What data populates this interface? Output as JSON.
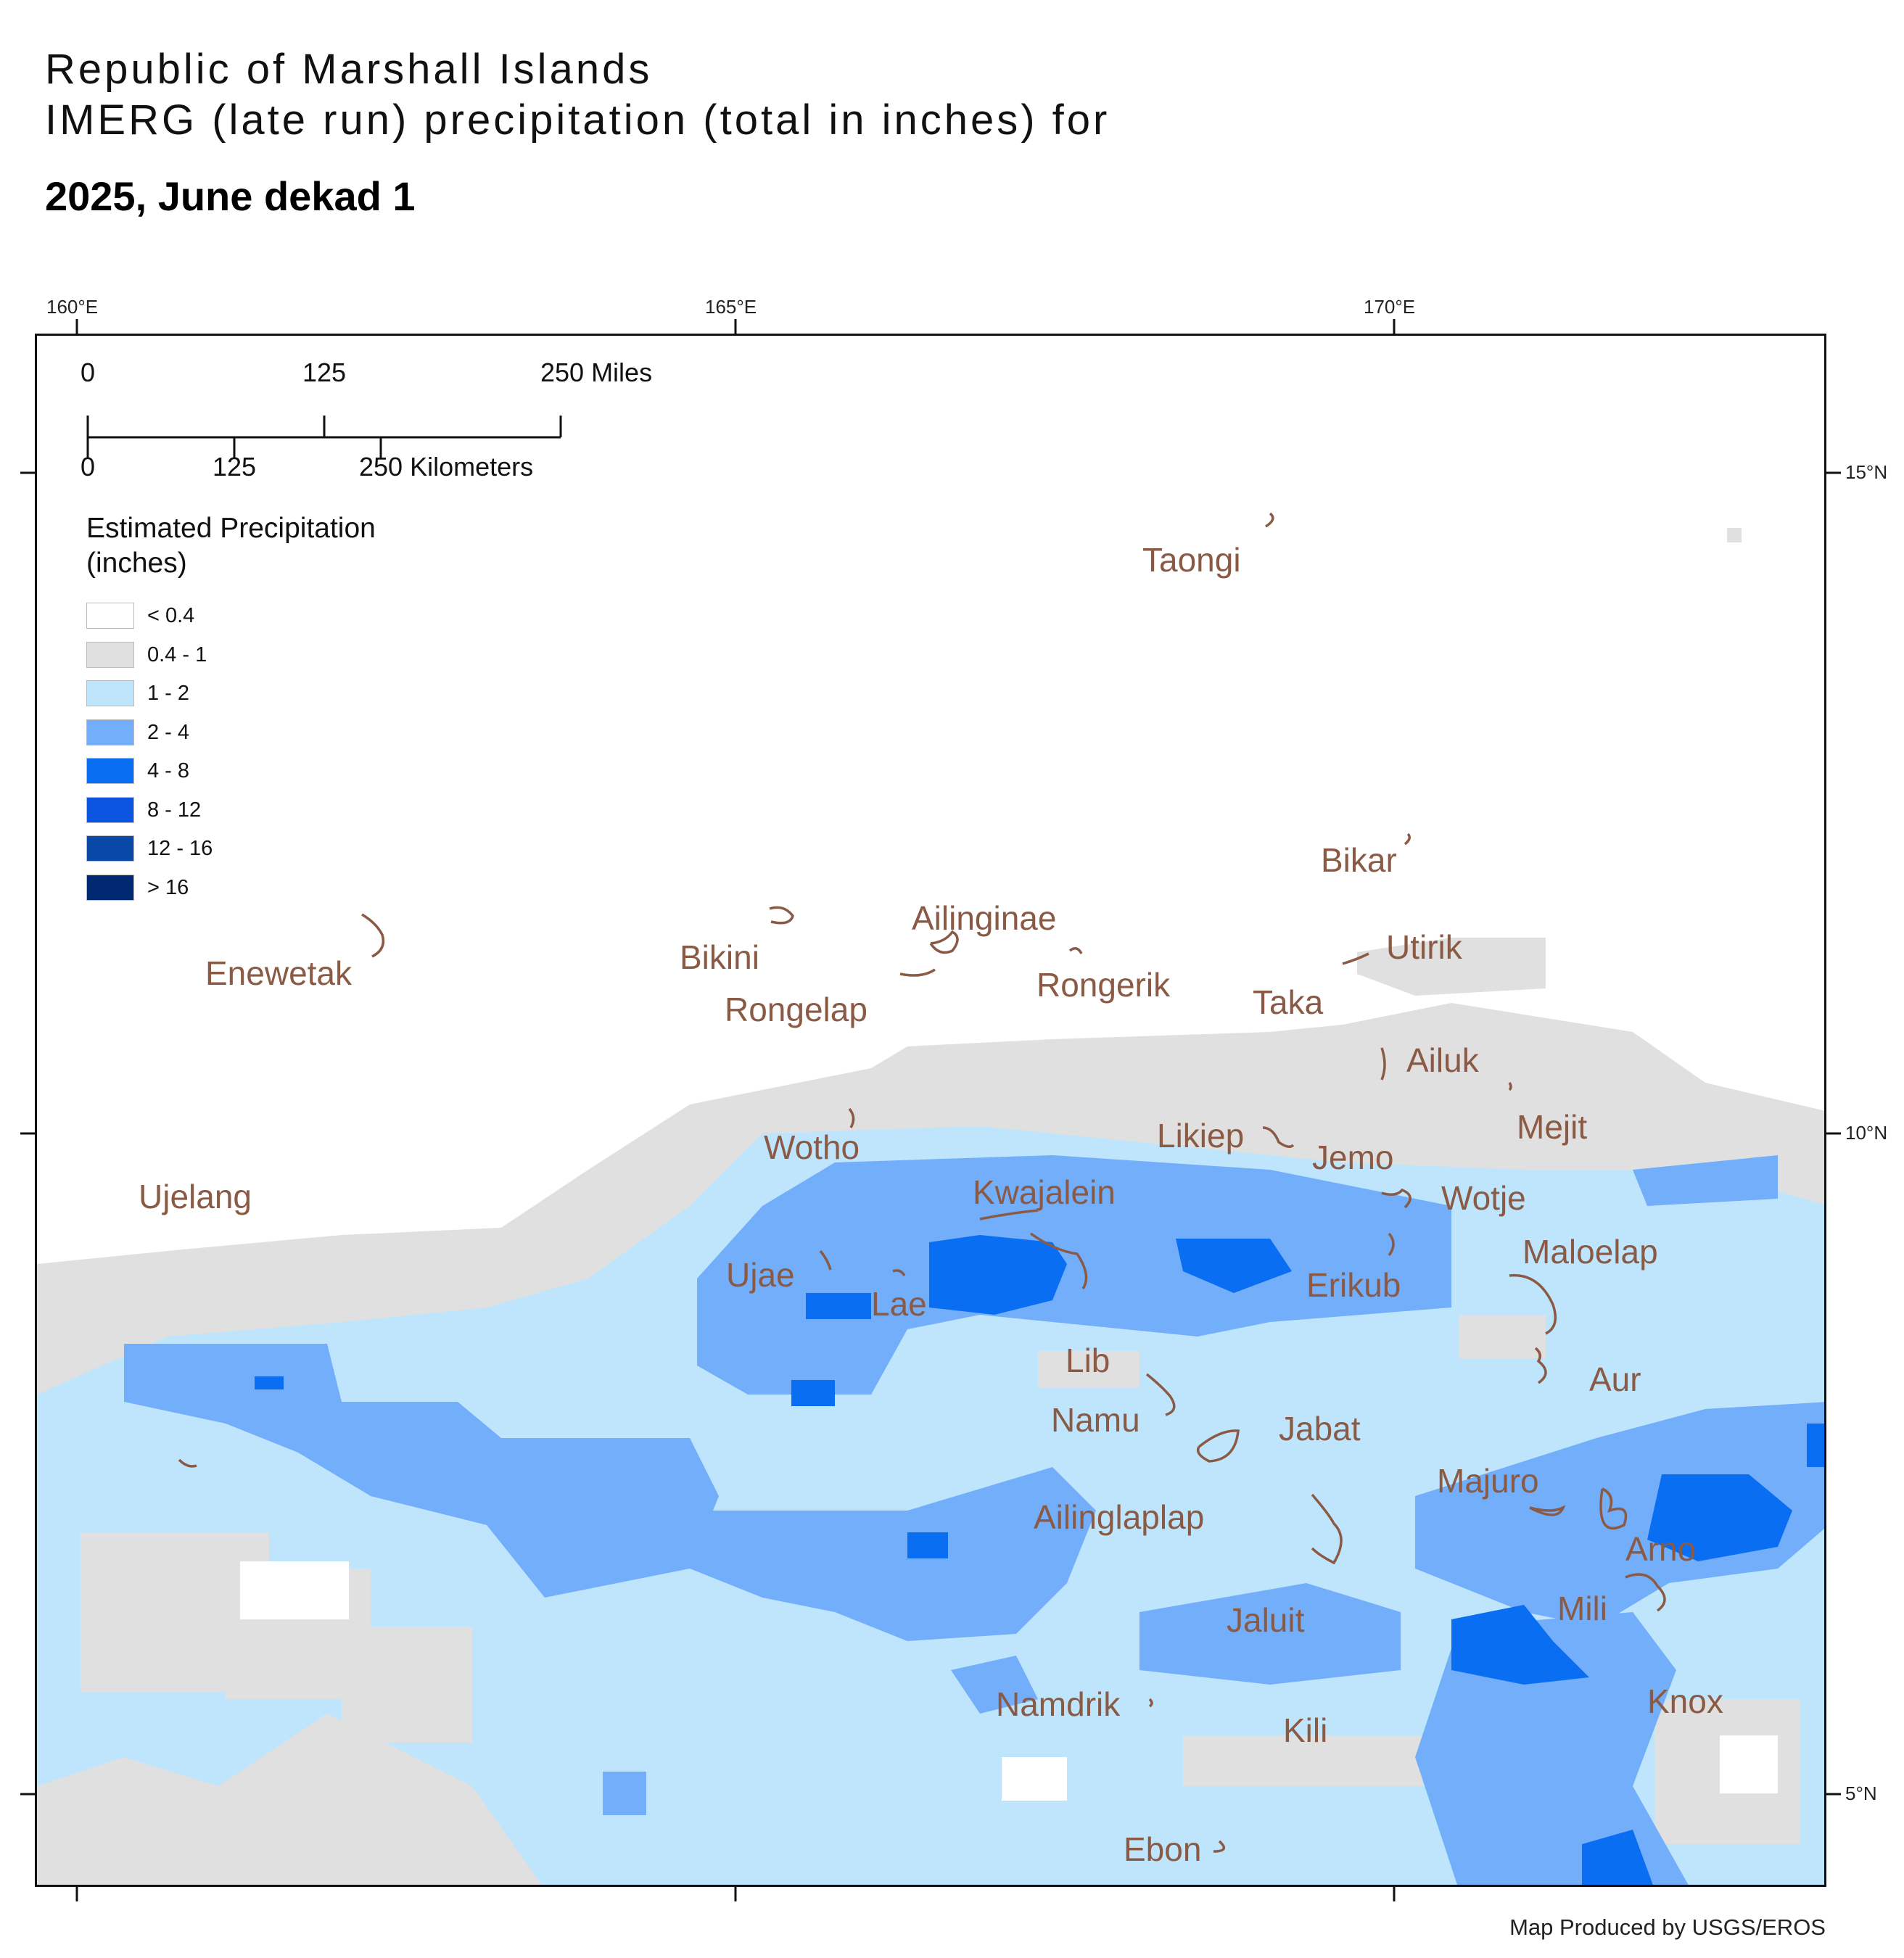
{
  "title": {
    "line1": "Republic of Marshall Islands",
    "line2": "IMERG (late run) precipitation (total in inches) for",
    "period": "2025, June dekad 1"
  },
  "graticule": {
    "lon_labels": [
      "160°E",
      "165°E",
      "170°E"
    ],
    "lat_labels": [
      "15°N",
      "10°N",
      "5°N"
    ]
  },
  "scale_bar": {
    "miles": [
      "0",
      "125",
      "250 Miles"
    ],
    "kilometers": [
      "0",
      "125",
      "250 Kilometers"
    ]
  },
  "legend": {
    "title_line1": "Estimated Precipitation",
    "title_line2": "(inches)",
    "classes": [
      {
        "label": "< 0.4",
        "color": "#ffffff"
      },
      {
        "label": "0.4 - 1",
        "color": "#e0e0e0"
      },
      {
        "label": "1 - 2",
        "color": "#bfe5fc"
      },
      {
        "label": "2 - 4",
        "color": "#72aefa"
      },
      {
        "label": "4 - 8",
        "color": "#0a6ef2"
      },
      {
        "label": "8 - 12",
        "color": "#0c55e0"
      },
      {
        "label": "12 - 16",
        "color": "#0a48a8"
      },
      {
        "label": "> 16",
        "color": "#002870"
      }
    ]
  },
  "atolls": [
    {
      "name": "Taongi"
    },
    {
      "name": "Bikar"
    },
    {
      "name": "Ailinginae"
    },
    {
      "name": "Bikini"
    },
    {
      "name": "Utirik"
    },
    {
      "name": "Enewetak"
    },
    {
      "name": "Rongerik"
    },
    {
      "name": "Taka"
    },
    {
      "name": "Rongelap"
    },
    {
      "name": "Ailuk"
    },
    {
      "name": "Mejit"
    },
    {
      "name": "Wotho"
    },
    {
      "name": "Likiep"
    },
    {
      "name": "Jemo"
    },
    {
      "name": "Ujelang"
    },
    {
      "name": "Kwajalein"
    },
    {
      "name": "Wotje"
    },
    {
      "name": "Maloelap"
    },
    {
      "name": "Ujae"
    },
    {
      "name": "Erikub"
    },
    {
      "name": "Lae"
    },
    {
      "name": "Lib"
    },
    {
      "name": "Aur"
    },
    {
      "name": "Namu"
    },
    {
      "name": "Jabat"
    },
    {
      "name": "Majuro"
    },
    {
      "name": "Ailinglaplap"
    },
    {
      "name": "Arno"
    },
    {
      "name": "Mili"
    },
    {
      "name": "Jaluit"
    },
    {
      "name": "Knox"
    },
    {
      "name": "Namdrik"
    },
    {
      "name": "Kili"
    },
    {
      "name": "Ebon"
    }
  ],
  "credit": "Map Produced by USGS/EROS"
}
